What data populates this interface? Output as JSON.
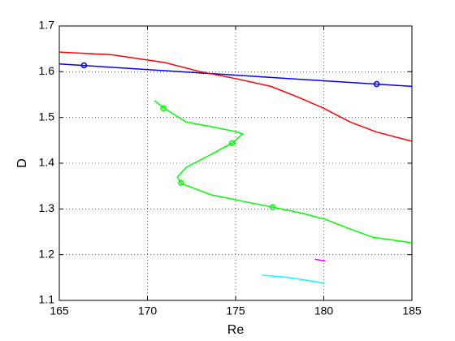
{
  "chart_data": {
    "type": "line",
    "x_label": "Re",
    "y_label": "D",
    "xlim": [
      165,
      185
    ],
    "ylim": [
      1.1,
      1.7
    ],
    "xticks": [
      165,
      170,
      175,
      180,
      185
    ],
    "yticks": [
      1.1,
      1.2,
      1.3,
      1.4,
      1.5,
      1.6,
      1.7
    ],
    "grid": true,
    "series": [
      {
        "color": "#0000ff",
        "x": [
          165,
          185
        ],
        "values": [
          1.617,
          1.568
        ],
        "markers": {
          "x": [
            166.4,
            183
          ],
          "values": [
            1.614,
            1.573
          ]
        }
      },
      {
        "color": "#ff0000",
        "x": [
          165,
          168,
          171,
          173,
          175,
          177,
          178.5,
          180,
          181.5,
          183,
          185
        ],
        "values": [
          1.643,
          1.637,
          1.62,
          1.6,
          1.585,
          1.568,
          1.545,
          1.52,
          1.49,
          1.468,
          1.448
        ]
      },
      {
        "color": "#00ff00",
        "x": [
          170.4,
          170.9,
          172.2,
          173.9,
          175,
          175.4,
          174.8,
          173.6,
          172.2,
          171.7,
          171.9,
          173.6,
          175.5,
          177.1,
          178.7,
          180.1,
          181.5,
          182.8,
          185
        ],
        "values": [
          1.537,
          1.521,
          1.49,
          1.478,
          1.469,
          1.464,
          1.444,
          1.419,
          1.391,
          1.37,
          1.356,
          1.331,
          1.316,
          1.304,
          1.291,
          1.277,
          1.256,
          1.238,
          1.226
        ],
        "markers": {
          "x": [
            170.9,
            174.8,
            171.9,
            177.1
          ],
          "values": [
            1.52,
            1.444,
            1.357,
            1.304
          ]
        }
      },
      {
        "color": "#ff00ff",
        "x": [
          179.5,
          180.1
        ],
        "values": [
          1.19,
          1.186
        ]
      },
      {
        "color": "#00ffff",
        "x": [
          176.5,
          178,
          180
        ],
        "values": [
          1.155,
          1.15,
          1.138
        ]
      }
    ]
  }
}
